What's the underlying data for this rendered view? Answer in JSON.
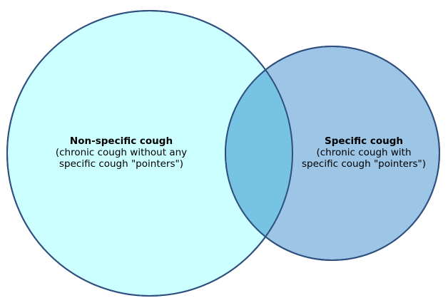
{
  "diagram": {
    "type": "venn",
    "sets": [
      {
        "id": "non-specific",
        "title": "Non-specific cough",
        "description_line1": "(chronic cough without any",
        "description_line2": "specific cough \"pointers\")",
        "fill": "#ccffff",
        "stroke": "#2f4f7f"
      },
      {
        "id": "specific",
        "title": "Specific cough",
        "description_line1": "(chronic cough with",
        "description_line2": "specific cough \"pointers\")",
        "fill": "#9cc5e6",
        "stroke": "#2f4f7f"
      }
    ],
    "overlap_fill": "#77c3e4"
  }
}
